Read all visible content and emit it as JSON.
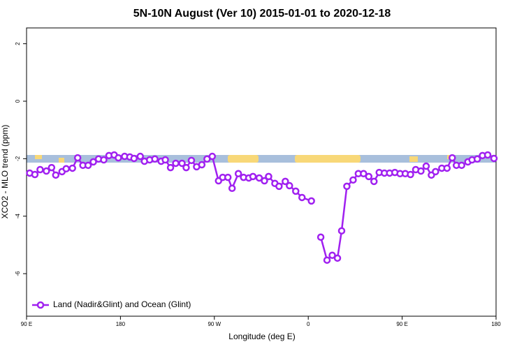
{
  "chart_data": {
    "type": "line",
    "title": "5N-10N August (Ver 10)   2015-01-01 to 2020-12-18",
    "xlabel": "Longitude (deg E)",
    "ylabel": "XCO2 - MLO trend (ppm)",
    "x": [
      93,
      98,
      103,
      109,
      114,
      118,
      124,
      128,
      134,
      139,
      144,
      149,
      154,
      159,
      164,
      169,
      174,
      178,
      184,
      189,
      193,
      199,
      203,
      208,
      213,
      219,
      223,
      228,
      233,
      239,
      243,
      248,
      253,
      258,
      263,
      268,
      274,
      278,
      283,
      287,
      293,
      298,
      303,
      307,
      313,
      318,
      322,
      328,
      332,
      338,
      342,
      348,
      354,
      363,
      367,
      372,
      378,
      383,
      388,
      392,
      397,
      403,
      408,
      413,
      418,
      423,
      428,
      433,
      438,
      443,
      448,
      453,
      458,
      463,
      468,
      473,
      478,
      482,
      488,
      493,
      498,
      502,
      507,
      513,
      517,
      522,
      527,
      532,
      538
    ],
    "series": [
      {
        "name": "Land (Nadir&Glint) and Ocean (Glint)",
        "color": "#a020f0",
        "values": [
          -2.5,
          -2.55,
          -2.38,
          -2.43,
          -2.31,
          -2.57,
          -2.45,
          -2.35,
          -2.33,
          -1.97,
          -2.23,
          -2.23,
          -2.11,
          -2.01,
          -2.04,
          -1.89,
          -1.87,
          -1.97,
          -1.92,
          -1.94,
          -1.99,
          -1.92,
          -2.09,
          -2.04,
          -2.01,
          -2.09,
          -2.04,
          -2.31,
          -2.16,
          -2.16,
          -2.31,
          -2.06,
          -2.28,
          -2.21,
          -2.01,
          -1.92,
          -2.77,
          -2.65,
          -2.65,
          -3.03,
          -2.52,
          -2.65,
          -2.67,
          -2.62,
          -2.67,
          -2.77,
          -2.62,
          -2.86,
          -2.96,
          -2.79,
          -2.94,
          -3.13,
          -3.35,
          -3.47,
          null,
          -4.73,
          -5.53,
          -5.36,
          -5.46,
          -4.51,
          -2.96,
          -2.74,
          -2.52,
          -2.52,
          -2.62,
          -2.79,
          -2.48,
          -2.5,
          -2.5,
          -2.48,
          -2.52,
          -2.52,
          -2.55,
          -2.38,
          -2.43,
          -2.26,
          -2.57,
          -2.45,
          -2.33,
          -2.33,
          -1.97,
          -2.23,
          -2.23,
          -2.11,
          -2.04,
          -2.01,
          -1.89,
          -1.87,
          -1.99
        ]
      }
    ],
    "xlim": [
      90,
      540
    ],
    "xticks": [
      {
        "value": 90,
        "label": "90 E"
      },
      180,
      {
        "value": 270,
        "label": "90 W"
      },
      {
        "value": 360,
        "label": "0"
      },
      {
        "value": 450,
        "label": "90 E"
      },
      {
        "value": 540,
        "label": "180"
      }
    ],
    "ylim": [
      -7.48,
      2.55
    ],
    "yticks": [
      2,
      0,
      -2,
      -4,
      -6
    ],
    "grid": false,
    "legend": "bottom-left"
  }
}
